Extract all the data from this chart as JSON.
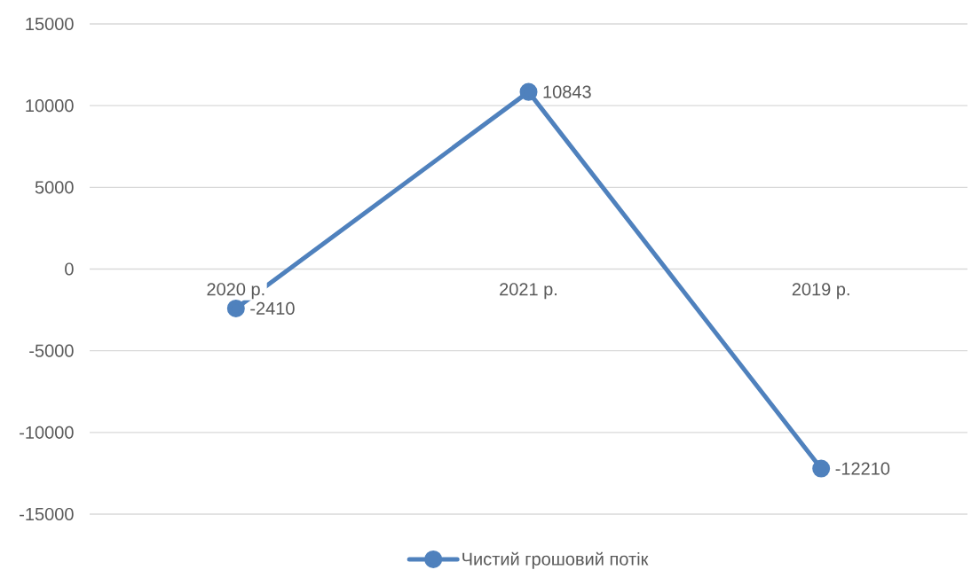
{
  "chart_data": {
    "type": "line",
    "categories": [
      "2020 р.",
      "2021 р.",
      "2019 р."
    ],
    "series": [
      {
        "name": "Чистий грошовий потік",
        "color": "#4f81bd",
        "values": [
          -2410,
          10843,
          -12210
        ]
      }
    ],
    "ylim": [
      -15000,
      15000
    ],
    "yticks": [
      -15000,
      -10000,
      -5000,
      0,
      5000,
      10000,
      15000
    ],
    "grid": "y",
    "legend": "bottom",
    "marker": "circle",
    "line_style": "solid",
    "data_labels": true
  }
}
